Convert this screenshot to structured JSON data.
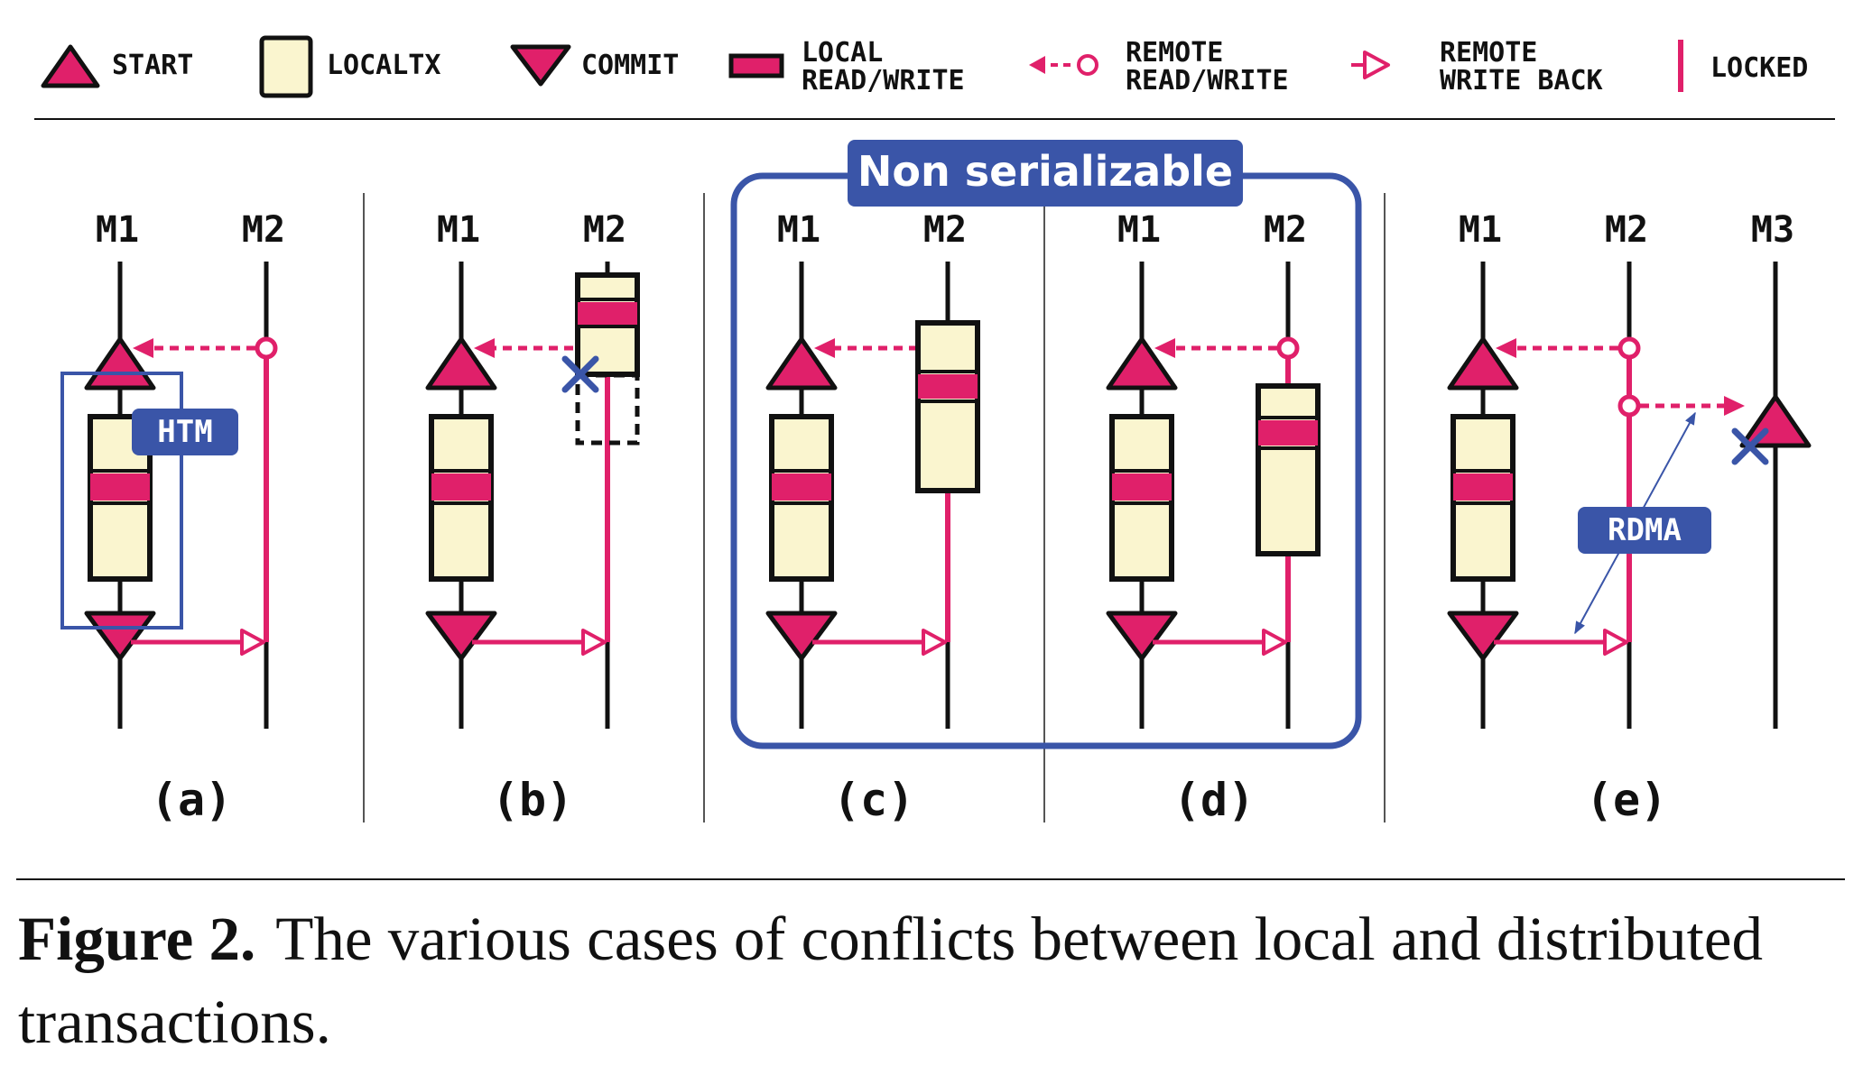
{
  "legend": {
    "start": "START",
    "localtx": "LOCALTX",
    "commit": "COMMIT",
    "local_rw_line1": "LOCAL",
    "local_rw_line2": "READ/WRITE",
    "remote_rw_line1": "REMOTE",
    "remote_rw_line2": "READ/WRITE",
    "remote_wb_line1": "REMOTE",
    "remote_wb_line2": "WRITE BACK",
    "locked": "LOCKED"
  },
  "machines": {
    "m1": "M1",
    "m2": "M2",
    "m3": "M3"
  },
  "panel_labels": {
    "a": "(a)",
    "b": "(b)",
    "c": "(c)",
    "d": "(d)",
    "e": "(e)"
  },
  "annotations": {
    "htm": "HTM",
    "rdma": "RDMA",
    "non_serializable": "Non serializable"
  },
  "caption": {
    "label": "Figure 2.",
    "text": "The various cases of conflicts between local and distributed transactions."
  },
  "colors": {
    "accent_pink": "#e0206a",
    "box_fill": "#faf5cf",
    "annotation_blue": "#3a55a8",
    "line_black": "#111111"
  }
}
